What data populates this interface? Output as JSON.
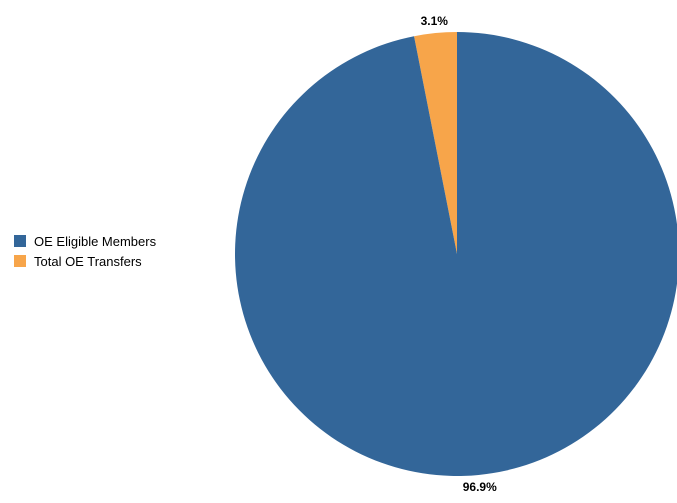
{
  "chart_data": {
    "type": "pie",
    "title": "",
    "slices": [
      {
        "label": "Total OE Transfers",
        "value": 3.1,
        "display": "3.1%",
        "color": "#F7A54A"
      },
      {
        "label": "OE Eligible Members",
        "value": 96.9,
        "display": "96.9%",
        "color": "#336699"
      }
    ],
    "legend": {
      "position": "left",
      "items": [
        {
          "label": "OE Eligible Members",
          "color": "#336699"
        },
        {
          "label": "Total OE Transfers",
          "color": "#F7A54A"
        }
      ]
    }
  }
}
